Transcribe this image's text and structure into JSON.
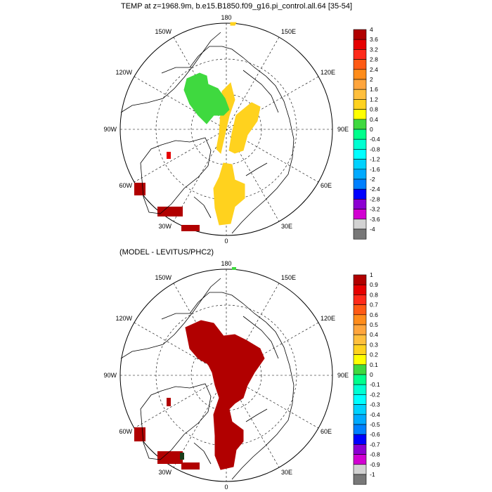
{
  "top_panel": {
    "title": "TEMP at z=1968.9m, b.e15.B1850.f09_g16.pi_control.all.64 [35-54]",
    "colorbar_labels": [
      "4",
      "3.6",
      "3.2",
      "2.8",
      "2.4",
      "2",
      "1.6",
      "1.2",
      "0.8",
      "0.4",
      "0",
      "-0.4",
      "-0.8",
      "-1.2",
      "-1.6",
      "-2",
      "-2.4",
      "-2.8",
      "-3.2",
      "-3.6",
      "-4"
    ],
    "data_color": "#ffd21e",
    "secondary_color": "#3fd93f"
  },
  "bottom_panel": {
    "title": "(MODEL - LEVITUS/PHC2)",
    "colorbar_labels": [
      "1",
      "0.9",
      "0.8",
      "0.7",
      "0.6",
      "0.5",
      "0.4",
      "0.3",
      "0.2",
      "0.1",
      "0",
      "-0.1",
      "-0.2",
      "-0.3",
      "-0.4",
      "-0.5",
      "-0.6",
      "-0.7",
      "-0.8",
      "-0.9",
      "-1"
    ],
    "data_color": "#b10000"
  },
  "longitude_labels": {
    "top": "180",
    "bottom": "0",
    "left": "90W",
    "right": "90E",
    "upper_left_1": "150W",
    "upper_left_2": "120W",
    "lower_left_1": "60W",
    "lower_left_2": "30W",
    "upper_right_1": "150E",
    "upper_right_2": "120E",
    "lower_right_1": "60E",
    "lower_right_2": "30E"
  },
  "colorbar_colors": [
    "#b10000",
    "#e60000",
    "#ff2a1a",
    "#ff5a14",
    "#ff8c1a",
    "#ffa53c",
    "#ffbf3c",
    "#ffd21e",
    "#ffff00",
    "#3fd93f",
    "#00ff8c",
    "#00ffd2",
    "#00ffff",
    "#00d2ff",
    "#00aaff",
    "#0080ff",
    "#0000ff",
    "#8c00d2",
    "#d200d2",
    "#d2d2d2",
    "#787878"
  ]
}
